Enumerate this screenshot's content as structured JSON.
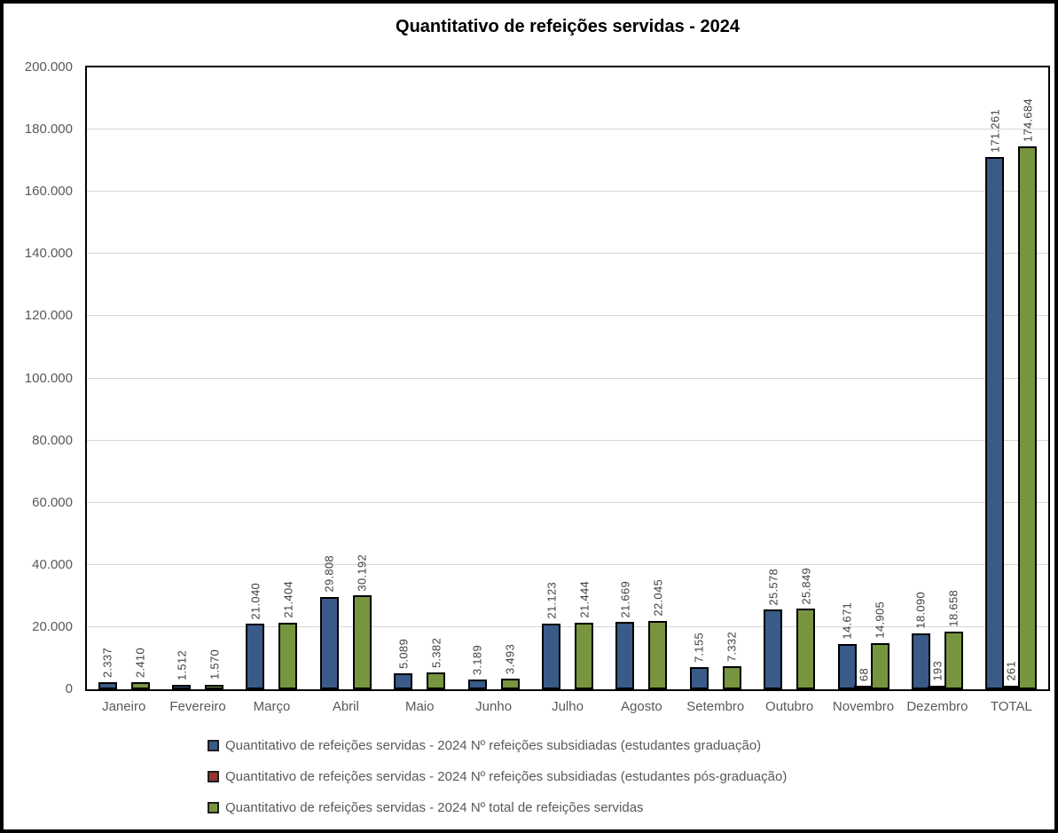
{
  "title": "Quantitativo de refeições servidas - 2024",
  "colors": {
    "series_blue": "#3a5a88",
    "series_red": "#943634",
    "series_green": "#77953f",
    "bar_border": "#000000",
    "gridline": "#d6d6d6",
    "axis_text": "#595959",
    "data_label_text": "#3f3f3f"
  },
  "chart_data": {
    "type": "bar",
    "title": "Quantitativo de refeições servidas - 2024",
    "xlabel": "",
    "ylabel": "",
    "ylim": [
      0,
      200000
    ],
    "grid": true,
    "legend_position": "bottom",
    "categories": [
      "Janeiro",
      "Fevereiro",
      "Março",
      "Abril",
      "Maio",
      "Junho",
      "Julho",
      "Agosto",
      "Setembro",
      "Outubro",
      "Novembro",
      "Dezembro",
      "TOTAL"
    ],
    "yticks": [
      {
        "v": 0,
        "label": "0"
      },
      {
        "v": 20000,
        "label": "20.000"
      },
      {
        "v": 40000,
        "label": "40.000"
      },
      {
        "v": 60000,
        "label": "60.000"
      },
      {
        "v": 80000,
        "label": "80.000"
      },
      {
        "v": 100000,
        "label": "100.000"
      },
      {
        "v": 120000,
        "label": "120.000"
      },
      {
        "v": 140000,
        "label": "140.000"
      },
      {
        "v": 160000,
        "label": "160.000"
      },
      {
        "v": 180000,
        "label": "180.000"
      },
      {
        "v": 200000,
        "label": "200.000"
      }
    ],
    "series": [
      {
        "name": "Quantitativo de refeições servidas - 2024 Nº refeições subsidiadas (estudantes graduação)",
        "color": "#3a5a88",
        "values": [
          2337,
          1512,
          21040,
          29808,
          5089,
          3189,
          21123,
          21669,
          7155,
          25578,
          14671,
          18090,
          171261
        ],
        "labels": [
          "2.337",
          "1.512",
          "21.040",
          "29.808",
          "5.089",
          "3.189",
          "21.123",
          "21.669",
          "7.155",
          "25.578",
          "14.671",
          "18.090",
          "171.261"
        ]
      },
      {
        "name": "Quantitativo de refeições servidas - 2024 Nº refeições subsidiadas (estudantes pós-graduação)",
        "color": "#943634",
        "values": [
          0,
          0,
          0,
          0,
          0,
          0,
          0,
          0,
          0,
          0,
          68,
          193,
          261
        ],
        "labels": [
          "",
          "",
          "",
          "",
          "",
          "",
          "",
          "",
          "",
          "",
          "68",
          "193",
          "261"
        ]
      },
      {
        "name": "Quantitativo de refeições servidas - 2024 Nº total de refeições servidas",
        "color": "#77953f",
        "values": [
          2410,
          1570,
          21404,
          30192,
          5382,
          3493,
          21444,
          22045,
          7332,
          25849,
          14905,
          18658,
          174684
        ],
        "labels": [
          "2.410",
          "1.570",
          "21.404",
          "30.192",
          "5.382",
          "3.493",
          "21.444",
          "22.045",
          "7.332",
          "25.849",
          "14.905",
          "18.658",
          "174.684"
        ]
      }
    ]
  }
}
